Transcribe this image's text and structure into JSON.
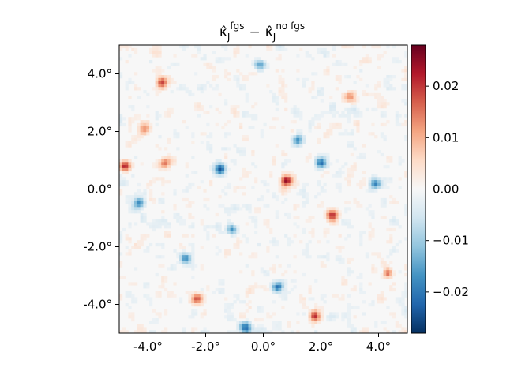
{
  "chart_data": {
    "type": "heatmap",
    "title": {
      "kappa_left": "κ̂",
      "sub_left": "J",
      "sup_left": "fgs",
      "minus": "−",
      "kappa_right": "κ̂",
      "sub_right": "J",
      "sup_right": "no fgs"
    },
    "xlabel": "",
    "ylabel": "",
    "xlim": [
      -5,
      5
    ],
    "ylim": [
      -5,
      5
    ],
    "x_ticks": [
      {
        "value": -4,
        "label": "-4.0°"
      },
      {
        "value": -2,
        "label": "-2.0°"
      },
      {
        "value": 0,
        "label": "0.0°"
      },
      {
        "value": 2,
        "label": "2.0°"
      },
      {
        "value": 4,
        "label": "4.0°"
      }
    ],
    "y_ticks": [
      {
        "value": 4,
        "label": "4.0°"
      },
      {
        "value": 2,
        "label": "2.0°"
      },
      {
        "value": 0,
        "label": "0.0°"
      },
      {
        "value": -2,
        "label": "-2.0°"
      },
      {
        "value": -4,
        "label": "-4.0°"
      }
    ],
    "colormap": "RdBu_r",
    "colorbar": {
      "vmin": -0.028,
      "vmax": 0.028,
      "ticks": [
        {
          "value": 0.02,
          "label": "0.02"
        },
        {
          "value": 0.01,
          "label": "0.01"
        },
        {
          "value": 0.0,
          "label": "0.00"
        },
        {
          "value": -0.01,
          "label": "−0.01"
        },
        {
          "value": -0.02,
          "label": "−0.02"
        }
      ]
    },
    "field_description_hotspots": [
      {
        "x": -1.5,
        "y": 0.7,
        "v": -0.024
      },
      {
        "x": 0.8,
        "y": 0.3,
        "v": 0.026
      },
      {
        "x": 2.0,
        "y": 0.9,
        "v": -0.022
      },
      {
        "x": -3.5,
        "y": 3.7,
        "v": 0.02
      },
      {
        "x": -4.1,
        "y": 2.1,
        "v": 0.015
      },
      {
        "x": 1.8,
        "y": -4.4,
        "v": 0.022
      },
      {
        "x": -2.3,
        "y": -3.8,
        "v": 0.02
      },
      {
        "x": -4.3,
        "y": -0.5,
        "v": -0.018
      },
      {
        "x": -0.1,
        "y": 4.3,
        "v": -0.016
      },
      {
        "x": 2.4,
        "y": -0.9,
        "v": 0.02
      },
      {
        "x": -2.7,
        "y": -2.4,
        "v": -0.017
      },
      {
        "x": 3.9,
        "y": 0.2,
        "v": -0.019
      },
      {
        "x": -1.1,
        "y": -1.4,
        "v": -0.018
      },
      {
        "x": 0.5,
        "y": -3.4,
        "v": -0.02
      },
      {
        "x": 3.0,
        "y": 3.2,
        "v": 0.015
      },
      {
        "x": -3.4,
        "y": 0.9,
        "v": 0.018
      },
      {
        "x": -4.8,
        "y": 0.8,
        "v": 0.022
      },
      {
        "x": 1.2,
        "y": 1.7,
        "v": -0.015
      },
      {
        "x": -0.6,
        "y": -4.8,
        "v": -0.02
      },
      {
        "x": 4.3,
        "y": -2.9,
        "v": 0.015
      }
    ]
  }
}
